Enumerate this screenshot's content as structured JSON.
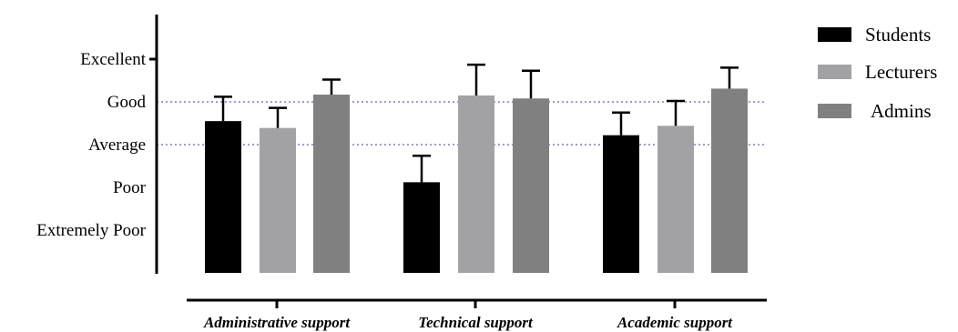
{
  "chart_data": {
    "type": "bar",
    "categories": [
      "Administrative support",
      "Technical support",
      "Academic support"
    ],
    "y_tick_labels": [
      "Extremely Poor",
      "Poor",
      "Average",
      "Good",
      "Excellent"
    ],
    "y_tick_values": [
      1,
      2,
      3,
      4,
      5
    ],
    "ylim": [
      0,
      6
    ],
    "reference_lines": [
      3,
      4
    ],
    "series": [
      {
        "name": "Students",
        "color": "#000000",
        "values": [
          3.55,
          2.12,
          3.22
        ],
        "errors": [
          0.57,
          0.62,
          0.53
        ]
      },
      {
        "name": "Lecturers",
        "color": "#a2a2a4",
        "values": [
          3.39,
          4.15,
          3.44
        ],
        "errors": [
          0.47,
          0.72,
          0.58
        ]
      },
      {
        "name": "Admins",
        "color": "#808080",
        "values": [
          4.17,
          4.08,
          4.31
        ],
        "errors": [
          0.35,
          0.65,
          0.49
        ]
      }
    ],
    "legend_position": "top-right",
    "grid": false
  }
}
